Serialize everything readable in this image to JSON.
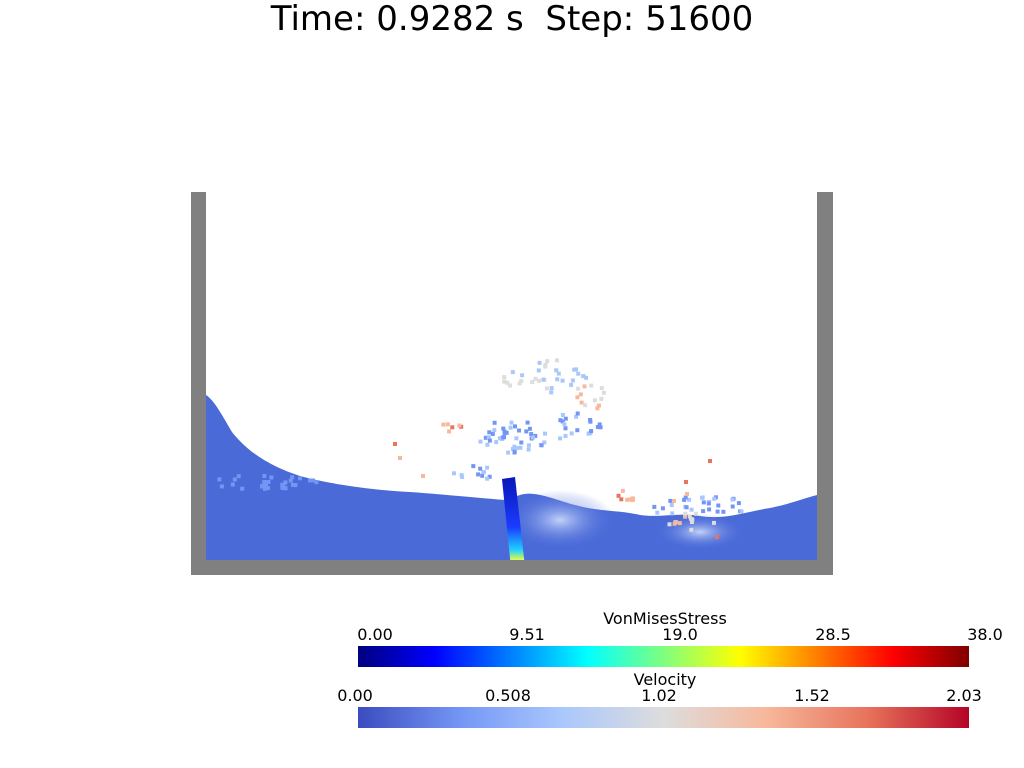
{
  "header": {
    "time_label": "Time:",
    "time_value": "0.9282",
    "time_unit": "s",
    "step_label": "Step:",
    "step_value": "51600"
  },
  "legends": {
    "stress": {
      "title": "VonMisesStress",
      "ticks": [
        "0.00",
        "9.51",
        "19.0",
        "28.5",
        "38.0"
      ],
      "colors": [
        "#00007f",
        "#0000ff",
        "#007fff",
        "#00ffff",
        "#7fff7f",
        "#ffff00",
        "#ff7f00",
        "#ff0000",
        "#7f0000"
      ]
    },
    "velocity": {
      "title": "Velocity",
      "ticks": [
        "0.00",
        "0.508",
        "1.02",
        "1.52",
        "2.03"
      ],
      "colors": [
        "#3b4cc0",
        "#7396f5",
        "#aac7fd",
        "#dddddd",
        "#f7b89c",
        "#e7745b",
        "#b40426"
      ]
    }
  },
  "scene": {
    "wall_color": "#808080",
    "fluid_color": "#4a6ad8",
    "plate_color": "#0a1fd0"
  }
}
